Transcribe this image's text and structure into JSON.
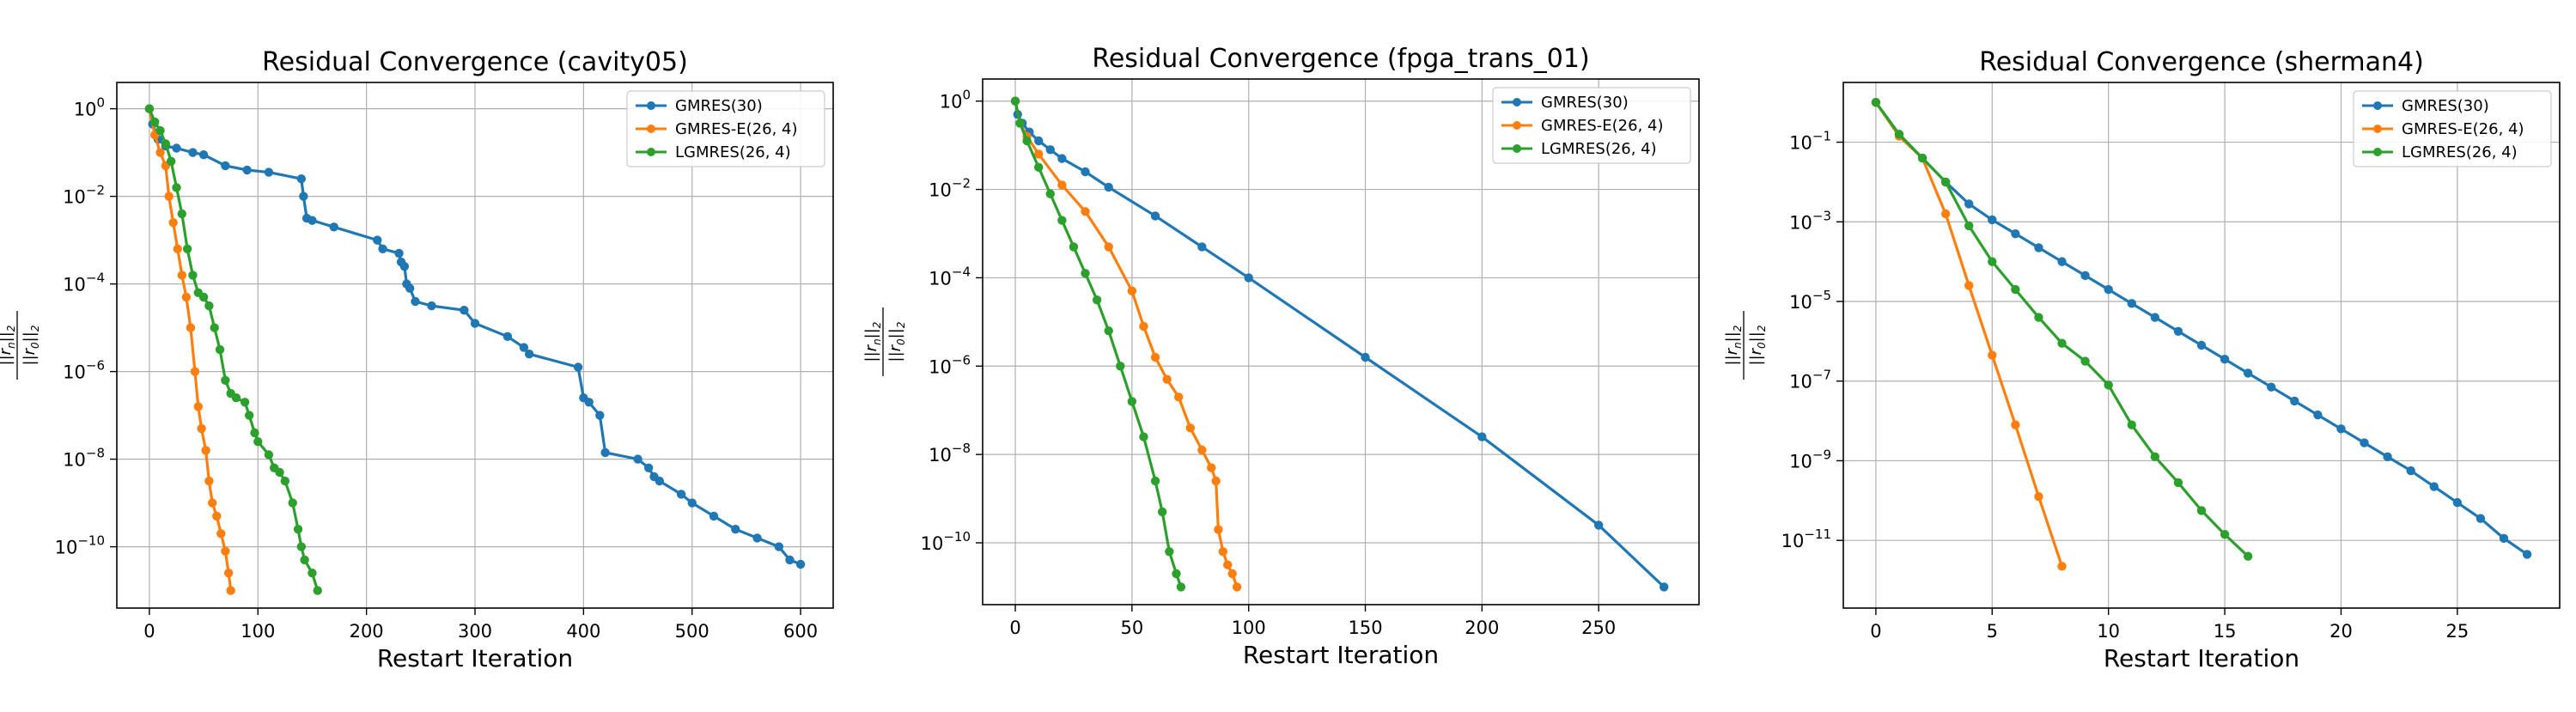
{
  "colors": {
    "GMRES(30)": "#1f77b4",
    "GMRES-E(26, 4)": "#ff7f0e",
    "LGMRES(26, 4)": "#2ca02c",
    "grid": "#b0b0b0"
  },
  "chart_data": [
    {
      "type": "line",
      "yscale": "log",
      "grid": true,
      "legend_placement": "top-right",
      "title": "Residual Convergence (cavity05)",
      "xlabel": "Restart Iteration",
      "ylabel": "||r_n||_2 / ||r_0||_2",
      "xlim": [
        -30,
        630
      ],
      "ylim_exp": [
        -11.4,
        0.6
      ],
      "xticks": [
        0,
        100,
        200,
        300,
        400,
        500,
        600
      ],
      "xtick_labels": [
        "0",
        "100",
        "200",
        "300",
        "400",
        "500",
        "600"
      ],
      "ytick_exps": [
        0,
        -2,
        -4,
        -6,
        -8,
        -10
      ],
      "ytick_labels": [
        "0",
        "−2",
        "−4",
        "−6",
        "−8",
        "−10"
      ],
      "series": [
        {
          "name": "GMRES(30)",
          "marker_every": 1,
          "log10_values": [
            [
              0,
              0
            ],
            [
              3,
              -0.35
            ],
            [
              8,
              -0.7
            ],
            [
              15,
              -0.85
            ],
            [
              25,
              -0.9
            ],
            [
              40,
              -1.0
            ],
            [
              50,
              -1.05
            ],
            [
              70,
              -1.3
            ],
            [
              90,
              -1.4
            ],
            [
              110,
              -1.45
            ],
            [
              140,
              -1.6
            ],
            [
              142,
              -2.0
            ],
            [
              145,
              -2.5
            ],
            [
              150,
              -2.55
            ],
            [
              170,
              -2.7
            ],
            [
              210,
              -3.0
            ],
            [
              215,
              -3.2
            ],
            [
              230,
              -3.3
            ],
            [
              232,
              -3.5
            ],
            [
              235,
              -3.6
            ],
            [
              237,
              -4.0
            ],
            [
              240,
              -4.1
            ],
            [
              245,
              -4.4
            ],
            [
              260,
              -4.5
            ],
            [
              290,
              -4.6
            ],
            [
              300,
              -4.9
            ],
            [
              330,
              -5.2
            ],
            [
              345,
              -5.45
            ],
            [
              350,
              -5.6
            ],
            [
              395,
              -5.9
            ],
            [
              400,
              -6.6
            ],
            [
              405,
              -6.7
            ],
            [
              415,
              -7.0
            ],
            [
              420,
              -7.85
            ],
            [
              450,
              -8.0
            ],
            [
              460,
              -8.2
            ],
            [
              465,
              -8.4
            ],
            [
              470,
              -8.5
            ],
            [
              490,
              -8.8
            ],
            [
              500,
              -9.0
            ],
            [
              520,
              -9.3
            ],
            [
              540,
              -9.6
            ],
            [
              560,
              -9.8
            ],
            [
              580,
              -10.0
            ],
            [
              590,
              -10.3
            ],
            [
              600,
              -10.4
            ]
          ]
        },
        {
          "name": "GMRES-E(26, 4)",
          "marker_every": 1,
          "log10_values": [
            [
              0,
              0
            ],
            [
              5,
              -0.6
            ],
            [
              10,
              -1.0
            ],
            [
              15,
              -1.3
            ],
            [
              18,
              -2.0
            ],
            [
              22,
              -2.6
            ],
            [
              26,
              -3.2
            ],
            [
              30,
              -3.8
            ],
            [
              34,
              -4.3
            ],
            [
              38,
              -5.0
            ],
            [
              42,
              -6.0
            ],
            [
              45,
              -6.8
            ],
            [
              48,
              -7.3
            ],
            [
              52,
              -7.8
            ],
            [
              55,
              -8.5
            ],
            [
              58,
              -9.0
            ],
            [
              62,
              -9.3
            ],
            [
              66,
              -9.7
            ],
            [
              70,
              -10.1
            ],
            [
              73,
              -10.6
            ],
            [
              75,
              -11.0
            ]
          ]
        },
        {
          "name": "LGMRES(26, 4)",
          "marker_every": 1,
          "log10_values": [
            [
              0,
              0
            ],
            [
              5,
              -0.3
            ],
            [
              10,
              -0.5
            ],
            [
              15,
              -0.8
            ],
            [
              20,
              -1.2
            ],
            [
              25,
              -1.8
            ],
            [
              30,
              -2.4
            ],
            [
              35,
              -3.2
            ],
            [
              40,
              -3.8
            ],
            [
              45,
              -4.2
            ],
            [
              50,
              -4.3
            ],
            [
              55,
              -4.5
            ],
            [
              60,
              -5.0
            ],
            [
              65,
              -5.5
            ],
            [
              70,
              -6.2
            ],
            [
              75,
              -6.5
            ],
            [
              80,
              -6.6
            ],
            [
              88,
              -6.7
            ],
            [
              92,
              -7.0
            ],
            [
              97,
              -7.4
            ],
            [
              100,
              -7.6
            ],
            [
              110,
              -7.9
            ],
            [
              115,
              -8.2
            ],
            [
              120,
              -8.3
            ],
            [
              125,
              -8.5
            ],
            [
              132,
              -9.0
            ],
            [
              137,
              -9.6
            ],
            [
              140,
              -10.0
            ],
            [
              143,
              -10.3
            ],
            [
              150,
              -10.6
            ],
            [
              155,
              -11.0
            ]
          ]
        }
      ]
    },
    {
      "type": "line",
      "yscale": "log",
      "grid": true,
      "legend_placement": "top-right",
      "title": "Residual Convergence (fpga_trans_01)",
      "xlabel": "Restart Iteration",
      "ylabel": "||r_n||_2 / ||r_0||_2",
      "xlim": [
        -14,
        293
      ],
      "ylim_exp": [
        -11.4,
        0.5
      ],
      "xticks": [
        0,
        50,
        100,
        150,
        200,
        250
      ],
      "xtick_labels": [
        "0",
        "50",
        "100",
        "150",
        "200",
        "250"
      ],
      "ytick_exps": [
        0,
        -2,
        -4,
        -6,
        -8,
        -10
      ],
      "ytick_labels": [
        "0",
        "−2",
        "−4",
        "−6",
        "−8",
        "−10"
      ],
      "series": [
        {
          "name": "GMRES(30)",
          "marker_every": 1,
          "log10_values": [
            [
              0,
              0
            ],
            [
              1,
              -0.3
            ],
            [
              3,
              -0.5
            ],
            [
              6,
              -0.7
            ],
            [
              10,
              -0.9
            ],
            [
              15,
              -1.1
            ],
            [
              20,
              -1.3
            ],
            [
              30,
              -1.6
            ],
            [
              40,
              -1.95
            ],
            [
              60,
              -2.6
            ],
            [
              80,
              -3.3
            ],
            [
              100,
              -4.0
            ],
            [
              150,
              -5.8
            ],
            [
              200,
              -7.6
            ],
            [
              250,
              -9.6
            ],
            [
              278,
              -11.0
            ]
          ]
        },
        {
          "name": "GMRES-E(26, 4)",
          "marker_every": 1,
          "log10_values": [
            [
              0,
              0
            ],
            [
              2,
              -0.5
            ],
            [
              5,
              -0.8
            ],
            [
              10,
              -1.2
            ],
            [
              20,
              -1.9
            ],
            [
              30,
              -2.5
            ],
            [
              40,
              -3.3
            ],
            [
              50,
              -4.3
            ],
            [
              55,
              -5.1
            ],
            [
              60,
              -5.8
            ],
            [
              65,
              -6.3
            ],
            [
              70,
              -6.7
            ],
            [
              75,
              -7.4
            ],
            [
              80,
              -7.9
            ],
            [
              84,
              -8.3
            ],
            [
              86,
              -8.6
            ],
            [
              87,
              -9.7
            ],
            [
              89,
              -10.2
            ],
            [
              91,
              -10.5
            ],
            [
              93,
              -10.7
            ],
            [
              95,
              -11.0
            ]
          ]
        },
        {
          "name": "LGMRES(26, 4)",
          "marker_every": 1,
          "log10_values": [
            [
              0,
              0
            ],
            [
              2,
              -0.5
            ],
            [
              5,
              -0.9
            ],
            [
              10,
              -1.5
            ],
            [
              15,
              -2.1
            ],
            [
              20,
              -2.7
            ],
            [
              25,
              -3.3
            ],
            [
              30,
              -3.9
            ],
            [
              35,
              -4.5
            ],
            [
              40,
              -5.2
            ],
            [
              45,
              -6.0
            ],
            [
              50,
              -6.8
            ],
            [
              55,
              -7.6
            ],
            [
              60,
              -8.6
            ],
            [
              63,
              -9.3
            ],
            [
              66,
              -10.2
            ],
            [
              69,
              -10.7
            ],
            [
              71,
              -11.0
            ]
          ]
        }
      ]
    },
    {
      "type": "line",
      "yscale": "log",
      "grid": true,
      "legend_placement": "top-right",
      "title": "Residual Convergence (sherman4)",
      "xlabel": "Restart Iteration",
      "ylabel": "||r_n||_2 / ||r_0||_2",
      "xlim": [
        -1.4,
        29.4
      ],
      "ylim_exp": [
        -12.7,
        0.5
      ],
      "xticks": [
        0,
        5,
        10,
        15,
        20,
        25
      ],
      "xtick_labels": [
        "0",
        "5",
        "10",
        "15",
        "20",
        "25"
      ],
      "ytick_exps": [
        -1,
        -3,
        -5,
        -7,
        -9,
        -11
      ],
      "ytick_labels": [
        "−1",
        "−3",
        "−5",
        "−7",
        "−9",
        "−11"
      ],
      "series": [
        {
          "name": "GMRES(30)",
          "marker_every": 1,
          "log10_values": [
            [
              0,
              0
            ],
            [
              1,
              -0.8
            ],
            [
              2,
              -1.4
            ],
            [
              3,
              -2.0
            ],
            [
              4,
              -2.55
            ],
            [
              5,
              -2.95
            ],
            [
              6,
              -3.3
            ],
            [
              7,
              -3.65
            ],
            [
              8,
              -4.0
            ],
            [
              9,
              -4.35
            ],
            [
              10,
              -4.7
            ],
            [
              11,
              -5.05
            ],
            [
              12,
              -5.4
            ],
            [
              13,
              -5.75
            ],
            [
              14,
              -6.1
            ],
            [
              15,
              -6.45
            ],
            [
              16,
              -6.8
            ],
            [
              17,
              -7.15
            ],
            [
              18,
              -7.5
            ],
            [
              19,
              -7.85
            ],
            [
              20,
              -8.2
            ],
            [
              21,
              -8.55
            ],
            [
              22,
              -8.9
            ],
            [
              23,
              -9.25
            ],
            [
              24,
              -9.65
            ],
            [
              25,
              -10.05
            ],
            [
              26,
              -10.45
            ],
            [
              27,
              -10.95
            ],
            [
              28,
              -11.35
            ]
          ]
        },
        {
          "name": "GMRES-E(26, 4)",
          "marker_every": 1,
          "log10_values": [
            [
              0,
              0
            ],
            [
              1,
              -0.85
            ],
            [
              2,
              -1.4
            ],
            [
              3,
              -2.8
            ],
            [
              4,
              -4.6
            ],
            [
              5,
              -6.35
            ],
            [
              6,
              -8.1
            ],
            [
              7,
              -9.9
            ],
            [
              8,
              -11.65
            ]
          ]
        },
        {
          "name": "LGMRES(26, 4)",
          "marker_every": 1,
          "log10_values": [
            [
              0,
              0
            ],
            [
              1,
              -0.8
            ],
            [
              2,
              -1.4
            ],
            [
              3,
              -2.0
            ],
            [
              4,
              -3.1
            ],
            [
              5,
              -4.0
            ],
            [
              6,
              -4.7
            ],
            [
              7,
              -5.4
            ],
            [
              8,
              -6.05
            ],
            [
              9,
              -6.5
            ],
            [
              10,
              -7.1
            ],
            [
              11,
              -8.1
            ],
            [
              12,
              -8.9
            ],
            [
              13,
              -9.55
            ],
            [
              14,
              -10.25
            ],
            [
              15,
              -10.85
            ],
            [
              16,
              -11.4
            ]
          ]
        }
      ]
    }
  ]
}
